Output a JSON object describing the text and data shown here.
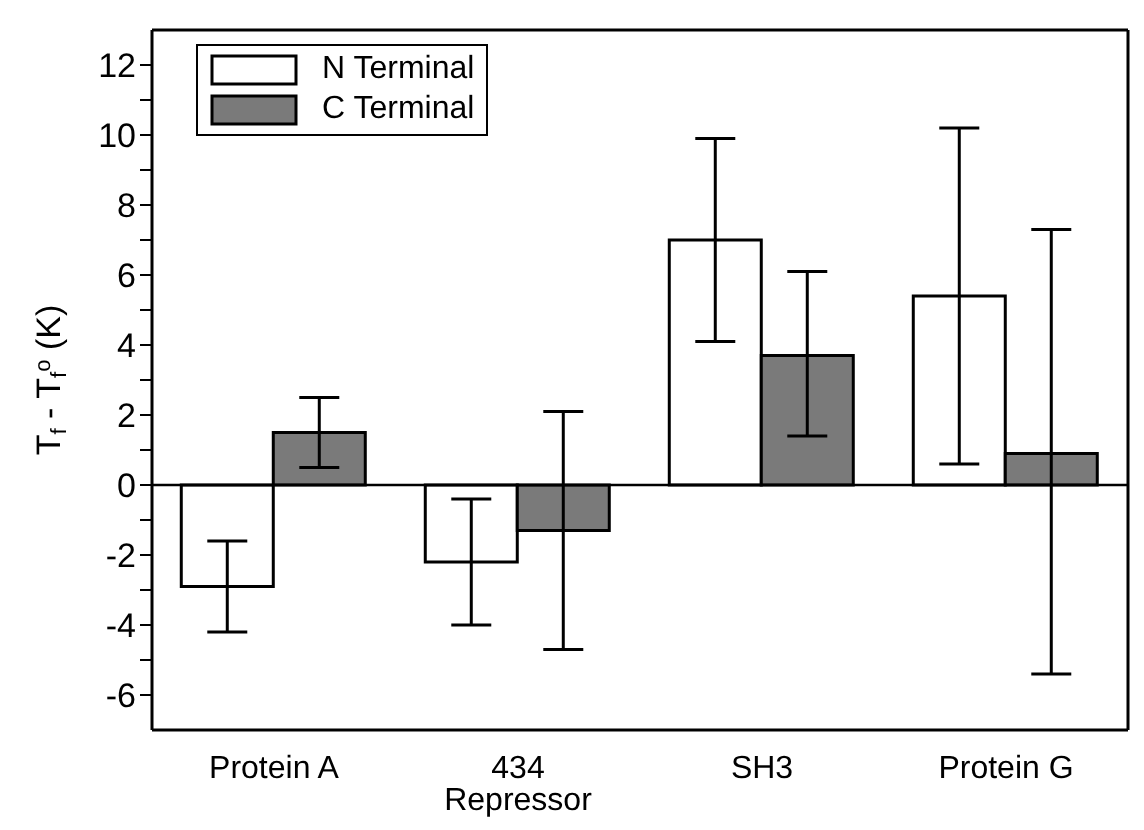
{
  "chart_data": {
    "type": "bar",
    "ylabel": "T$_{f}$ - T$_{f}$$^{o}$ (K)",
    "categories": [
      "Protein A",
      "434\nRepressor",
      "SH3",
      "Protein G"
    ],
    "series": [
      {
        "name": "N Terminal",
        "color": "#ffffff",
        "values": [
          -2.9,
          -2.2,
          7.0,
          5.4
        ],
        "errors": [
          [
            -4.2,
            -1.6
          ],
          [
            -4.0,
            -0.4
          ],
          [
            4.1,
            9.9
          ],
          [
            0.6,
            10.2
          ]
        ]
      },
      {
        "name": "C Terminal",
        "color": "#7a7a7a",
        "values": [
          1.5,
          -1.3,
          3.7,
          0.9
        ],
        "errors": [
          [
            0.5,
            2.5
          ],
          [
            -4.7,
            2.1
          ],
          [
            1.4,
            6.1
          ],
          [
            -5.4,
            7.3
          ]
        ]
      }
    ],
    "ylim": [
      -7,
      13
    ],
    "yticks": [
      -6,
      {
        "value": -5,
        "label": null
      },
      -4,
      {
        "value": -3,
        "label": null
      },
      -2,
      {
        "value": -1,
        "label": null
      },
      0,
      {
        "value": 1,
        "label": null
      },
      2,
      {
        "value": 3,
        "label": null
      },
      4,
      {
        "value": 5,
        "label": null
      },
      6,
      {
        "value": 7,
        "label": null
      },
      8,
      {
        "value": 9,
        "label": null
      },
      10,
      {
        "value": 11,
        "label": null
      },
      12
    ],
    "ref_lines": [
      {
        "axis": "y",
        "value": 0,
        "color": "#000000"
      }
    ],
    "grid": false,
    "legend": "top left"
  }
}
